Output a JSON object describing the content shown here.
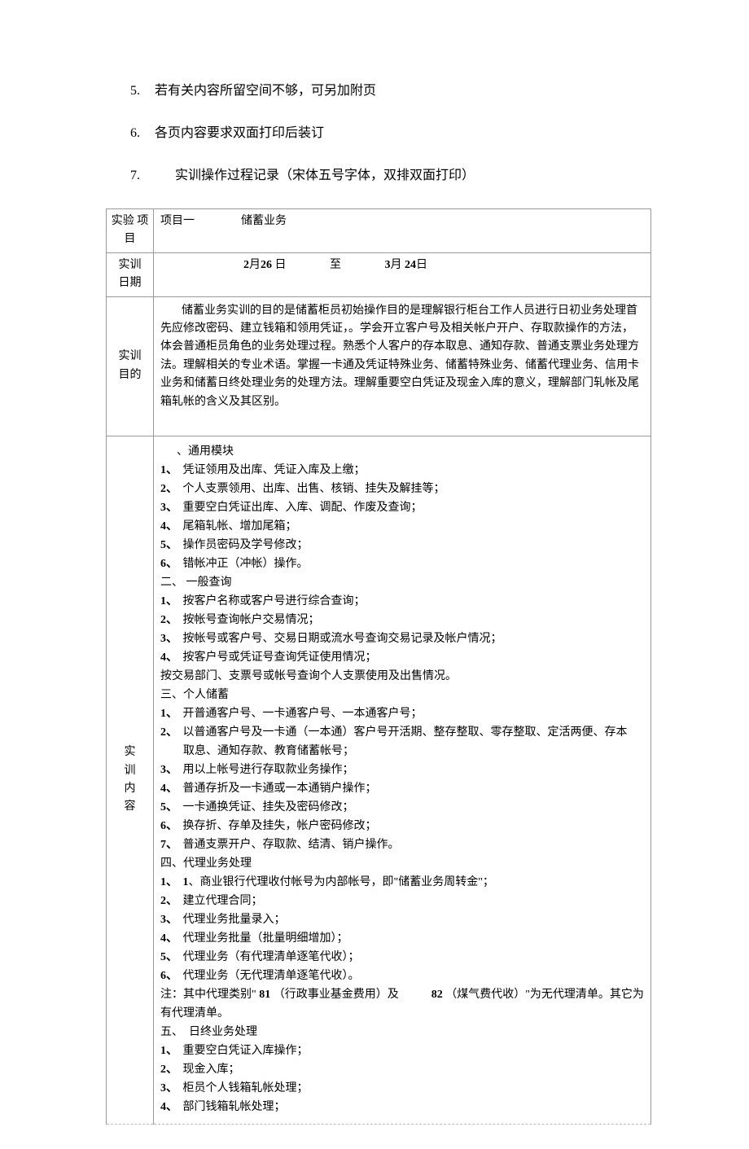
{
  "heading_lines": [
    {
      "num": "5.",
      "text": "若有关内容所留空间不够，可另加附页",
      "wide": false
    },
    {
      "num": "6.",
      "text": "各页内容要求双面打印后装订",
      "wide": false
    },
    {
      "num": "7.",
      "text": "实训操作过程记录（宋体五号字体，双排双面打印）",
      "wide": true
    }
  ],
  "table": {
    "row1": {
      "label": "实验 项目",
      "content_prefix": "项目一",
      "content_name": "储蓄业务"
    },
    "row2": {
      "label_line1": "实训",
      "label_line2": "日期",
      "date_start_m": "2",
      "date_start_m_suffix": "月",
      "date_start_d": "26",
      "date_start_d_suffix": "日",
      "sep": "至",
      "date_end_m": "3",
      "date_end_m_suffix": "月",
      "date_end_d": " 24",
      "date_end_d_suffix": "日"
    },
    "row3": {
      "label_line1": "实训",
      "label_line2": "目的",
      "text": "储蓄业务实训的目的是储蓄柜员初始操作目的是理解银行柜台工作人员进行日初业务处理首先应修改密码、建立钱箱和领用凭证，。学会开立客户号及相关帐户开户、存取款操作的方法，体会普通柜员角色的业务处理过程。熟悉个人客户的存本取息、通知存款、普通支票业务处理方法。理解相关的专业术语。掌握一卡通及凭证特殊业务、储蓄特殊业务、储蓄代理业务、信用卡业务和储蓄日终处理业务的处理方法。理解重要空白凭证及现金入库的意义，理解部门轧帐及尾箱轧帐的含义及其区别。"
    },
    "row4": {
      "label": "实训内容",
      "sections": [
        {
          "header_indent": true,
          "header": "、通用模块",
          "items": [
            {
              "n": "1、",
              "t": "凭证领用及出库、凭证入库及上缴；"
            },
            {
              "n": "2、",
              "t": "个人支票领用、出库、出售、核销、挂失及解挂等；"
            },
            {
              "n": "3、",
              "t": "重要空白凭证出库、入库、调配、作废及查询；"
            },
            {
              "n": "4、",
              "t": "尾箱轧帐、增加尾箱；"
            },
            {
              "n": "5、",
              "t": "操作员密码及学号修改；"
            },
            {
              "n": "6、",
              "t": "错帐冲正（冲帐）操作。"
            }
          ]
        },
        {
          "header_indent": false,
          "header": "二、 一般查询",
          "header_note_style": true,
          "items": [
            {
              "n": "1、",
              "t": "按客户名称或客户号进行综合查询；"
            },
            {
              "n": "2、",
              "t": "按帐号查询帐户交易情况；"
            },
            {
              "n": "3、",
              "t": "按帐号或客户号、交易日期或流水号查询交易记录及帐户情况；"
            },
            {
              "n": "4、",
              "t": "按客户号或凭证号查询凭证使用情况；"
            }
          ],
          "trailing": "按交易部门、支票号或帐号查询个人支票使用及出售情况。"
        },
        {
          "header": "三、个人储蓄",
          "items": [
            {
              "n": "1、",
              "t": "开普通客户号、一卡通客户号、一本通客户号；"
            },
            {
              "n": "2、",
              "t": "以普通客户号及一卡通（一本通）客户号开活期、整存整取、零存整取、定活两便、存本",
              "cont": "取息、通知存款、教育储蓄帐号；"
            },
            {
              "n": "3、",
              "t": "用以上帐号进行存取款业务操作；"
            },
            {
              "n": "4、",
              "t": "普通存折及一卡通或一本通销户操作；"
            },
            {
              "n": "5、",
              "t": "一卡通换凭证、挂失及密码修改；"
            },
            {
              "n": "6、",
              "t": "换存折、存单及挂失，帐户密码修改；"
            },
            {
              "n": "7、",
              "t": "普通支票开户、存取款、结清、销户操作。"
            }
          ]
        },
        {
          "header": "四、代理业务处理",
          "items": [
            {
              "n": "1、",
              "rich": true,
              "code1": "1",
              "t_after": "、商业银行代理收付帐号为内部帐号，即\"储蓄业务周转金\"；"
            },
            {
              "n": "2、",
              "t": "建立代理合同；"
            },
            {
              "n": "3、",
              "t": "代理业务批量录入；"
            },
            {
              "n": "4、",
              "t": "代理业务批量（批量明细增加）；"
            },
            {
              "n": "5、",
              "t": "代理业务（有代理清单逐笔代收）；"
            },
            {
              "n": "6、",
              "t": "代理业务（无代理清单逐笔代收）。"
            }
          ],
          "note": {
            "prefix": "注：其中代理类别\"",
            "code1": "81",
            "mid1": "（行政事业基金费用）及",
            "code2": "82",
            "mid2": "（煤气费代收）\"为无代理清单。其它为",
            "line2": "有代理清单。"
          }
        },
        {
          "header": "五、　日终业务处理",
          "items": [
            {
              "n": "1、",
              "t": "重要空白凭证入库操作；"
            },
            {
              "n": "2、",
              "t": "现金入库；"
            },
            {
              "n": "3、",
              "t": "柜员个人钱箱轧帐处理；"
            },
            {
              "n": "4、",
              "t": "部门钱箱轧帐处理；"
            }
          ]
        }
      ]
    }
  }
}
